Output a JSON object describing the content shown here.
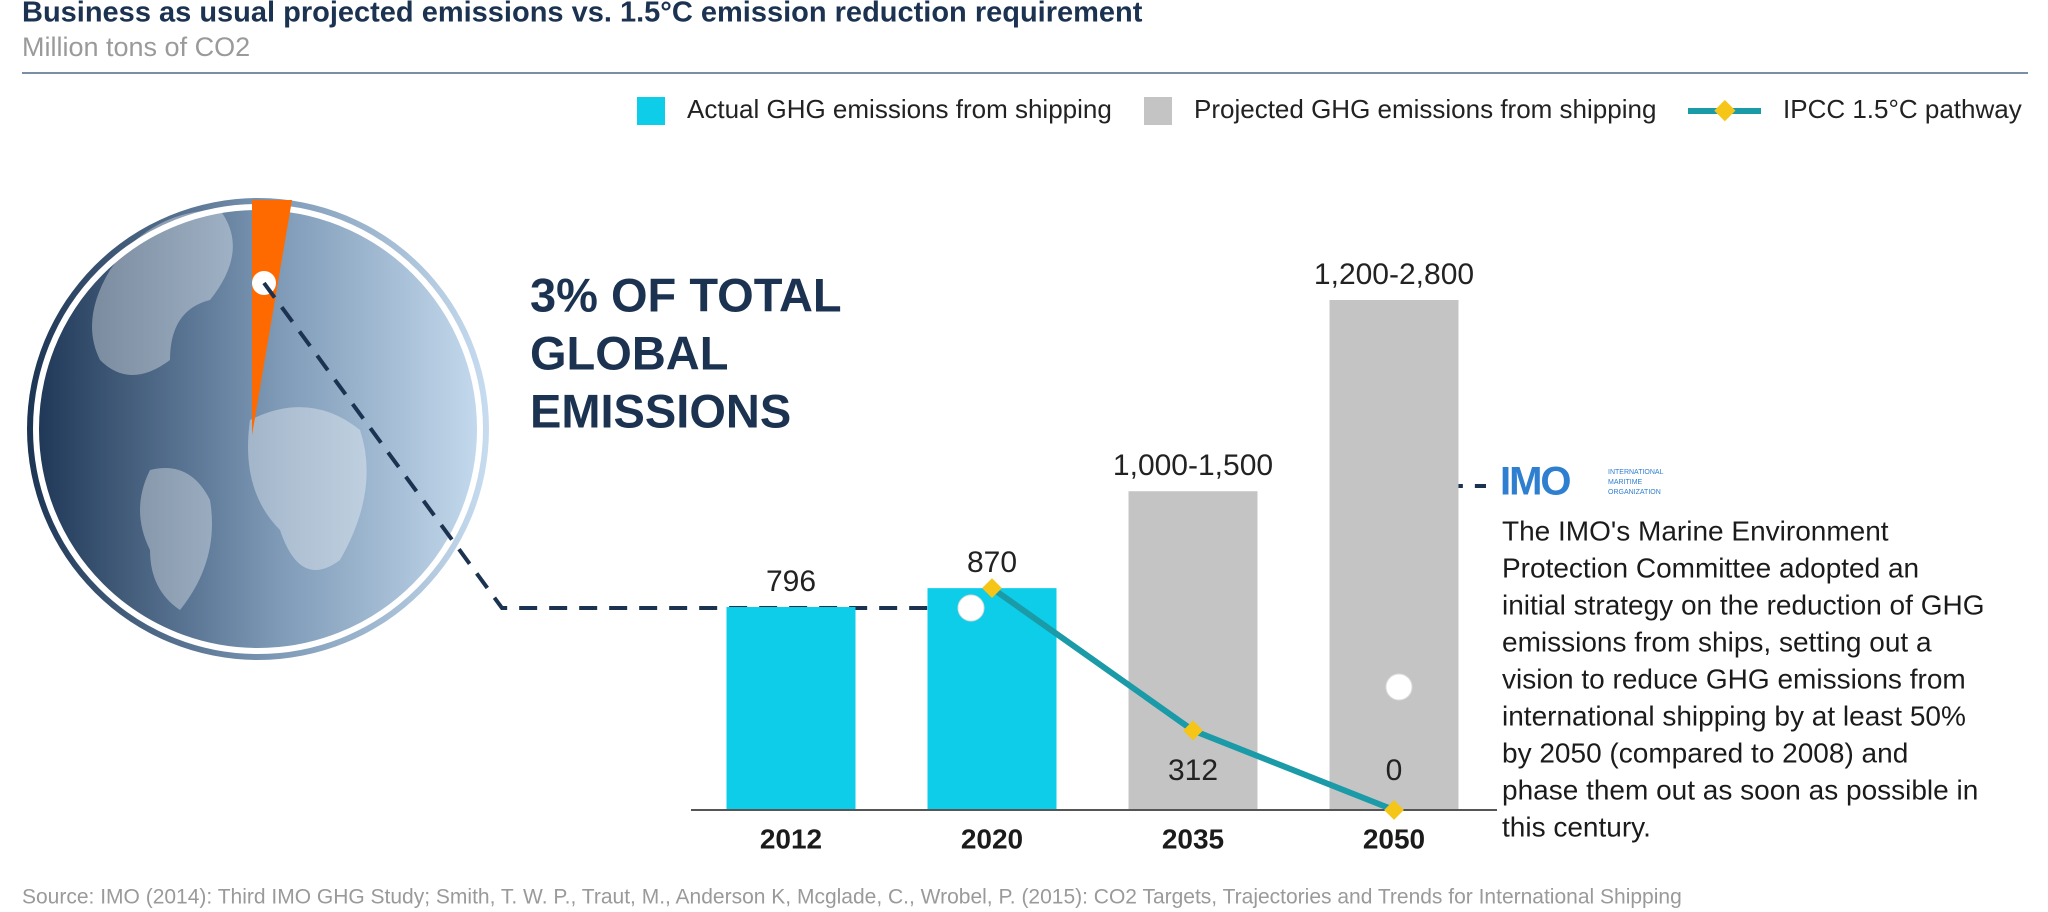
{
  "chart_data": {
    "type": "bar",
    "title": "Business as usual projected emissions vs. 1.5°C emission reduction requirement",
    "subtitle": "Million tons of CO2",
    "categories": [
      "2012",
      "2020",
      "2035",
      "2050"
    ],
    "series": [
      {
        "name": "Actual GHG emissions from shipping",
        "type": "bar",
        "color": "#0dcde8",
        "values": [
          796,
          870,
          null,
          null
        ]
      },
      {
        "name": "Projected GHG emissions from shipping",
        "type": "bar",
        "color": "#c4c4c4",
        "values": [
          null,
          null,
          1250,
          2000
        ],
        "value_labels": [
          null,
          null,
          "1,000-1,500",
          "1,200-2,800"
        ]
      },
      {
        "name": "IPCC 1.5°C pathway",
        "type": "line",
        "color": "#1b9aa8",
        "marker_color": "#f5c518",
        "values": [
          null,
          870,
          312,
          0
        ]
      }
    ],
    "legend": "top-right",
    "source": "Source: IMO (2014): Third IMO GHG Study; Smith, T. W. P., Traut, M., Anderson K, Mcglade, C., Wrobel, P. (2015): CO2 Targets, Trajectories and Trends for International Shipping"
  },
  "callout": {
    "headline": [
      "3% OF TOTAL",
      "GLOBAL",
      "EMISSIONS"
    ]
  },
  "imo": {
    "logo": "IMO",
    "logo_sub": [
      "INTERNATIONAL",
      "MARITIME",
      "ORGANIZATION"
    ],
    "text_lines": [
      "The IMO's Marine Environment",
      "Protection Committee adopted an",
      "initial strategy on the reduction of GHG",
      "emissions from ships, setting out a",
      "vision to reduce GHG emissions from",
      "international shipping by at least 50%",
      "by 2050 (compared to 2008) and",
      "phase them out as soon as possible in",
      "this century."
    ]
  }
}
